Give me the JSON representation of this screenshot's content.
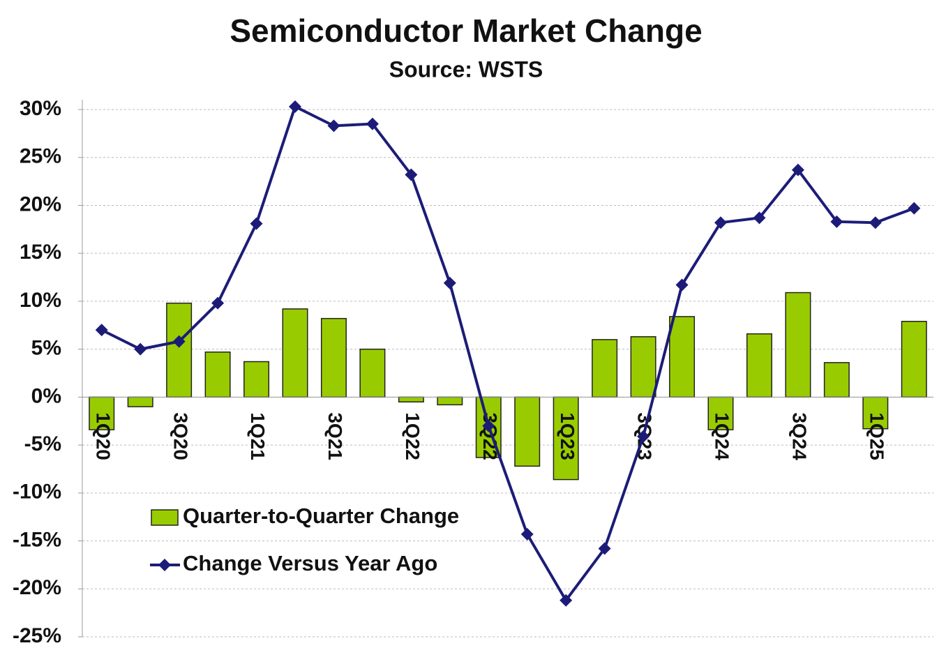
{
  "chart_data": {
    "type": "bar-line",
    "title": "Semiconductor Market Change",
    "subtitle": "Source: WSTS",
    "categories": [
      "1Q20",
      null,
      "3Q20",
      null,
      "1Q21",
      null,
      "3Q21",
      null,
      "1Q22",
      null,
      "3Q22",
      null,
      "1Q23",
      null,
      "3Q23",
      null,
      "1Q24",
      null,
      "3Q24",
      null,
      "1Q25",
      null
    ],
    "series": [
      {
        "name": "Quarter-to-Quarter Change",
        "type": "bar",
        "color": "#99cc00",
        "values": [
          -3.4,
          -1.0,
          9.8,
          4.7,
          3.7,
          9.2,
          8.2,
          5.0,
          -0.5,
          -0.8,
          -6.3,
          -7.2,
          -8.6,
          6.0,
          6.3,
          8.4,
          -3.4,
          6.6,
          10.9,
          3.6,
          -3.3,
          7.9
        ]
      },
      {
        "name": "Change Versus Year Ago",
        "type": "line",
        "color": "#1c1c78",
        "values": [
          7.0,
          5.0,
          5.8,
          9.8,
          18.1,
          30.3,
          28.3,
          28.5,
          23.2,
          11.9,
          -3.0,
          -14.3,
          -21.2,
          -15.8,
          -4.1,
          11.7,
          18.2,
          18.7,
          23.7,
          18.3,
          18.2,
          19.7
        ]
      }
    ],
    "ylim": [
      -25,
      30
    ],
    "yticks": [
      {
        "value": 30,
        "label": "30%"
      },
      {
        "value": 25,
        "label": "25%"
      },
      {
        "value": 20,
        "label": "20%"
      },
      {
        "value": 15,
        "label": "15%"
      },
      {
        "value": 10,
        "label": "10%"
      },
      {
        "value": 5,
        "label": "5%"
      },
      {
        "value": 0,
        "label": "0%"
      },
      {
        "value": -5,
        "label": "-5%"
      },
      {
        "value": -10,
        "label": "-10%"
      },
      {
        "value": -15,
        "label": "-15%"
      },
      {
        "value": -20,
        "label": "-20%"
      },
      {
        "value": -25,
        "label": "-25%"
      }
    ],
    "grid": true
  }
}
